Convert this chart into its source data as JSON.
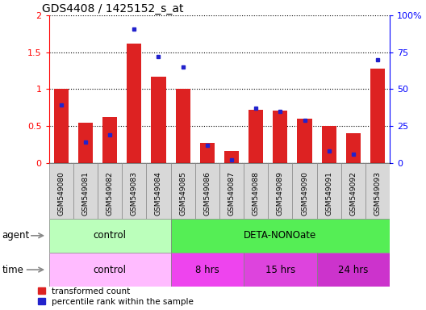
{
  "title": "GDS4408 / 1425152_s_at",
  "samples": [
    "GSM549080",
    "GSM549081",
    "GSM549082",
    "GSM549083",
    "GSM549084",
    "GSM549085",
    "GSM549086",
    "GSM549087",
    "GSM549088",
    "GSM549089",
    "GSM549090",
    "GSM549091",
    "GSM549092",
    "GSM549093"
  ],
  "transformed_count": [
    1.0,
    0.54,
    0.62,
    1.62,
    1.17,
    1.0,
    0.27,
    0.16,
    0.72,
    0.71,
    0.6,
    0.5,
    0.4,
    1.28
  ],
  "percentile_rank_pct": [
    39,
    14,
    19,
    91,
    72,
    65,
    12,
    2,
    37,
    35,
    29,
    8,
    6,
    70
  ],
  "ylim_left": [
    0,
    2
  ],
  "ylim_right": [
    0,
    100
  ],
  "yticks_left": [
    0,
    0.5,
    1.0,
    1.5,
    2.0
  ],
  "ytick_labels_left": [
    "0",
    "0.5",
    "1",
    "1.5",
    "2"
  ],
  "yticks_right": [
    0,
    25,
    50,
    75,
    100
  ],
  "ytick_labels_right": [
    "0",
    "25",
    "50",
    "75",
    "100%"
  ],
  "bar_color": "#dd2222",
  "dot_color": "#2222cc",
  "agent_control_color": "#bbffbb",
  "agent_deta_color": "#55ee55",
  "time_control_color": "#ffbbff",
  "time_8hrs_color": "#ee44ee",
  "time_15hrs_color": "#dd44dd",
  "time_24hrs_color": "#cc33cc",
  "n_control": 5,
  "n_8hrs": 3,
  "n_15hrs": 3,
  "n_24hrs": 3,
  "legend_bar_label": "transformed count",
  "legend_dot_label": "percentile rank within the sample",
  "xtick_bg_color": "#d8d8d8",
  "xtick_border_color": "#888888"
}
